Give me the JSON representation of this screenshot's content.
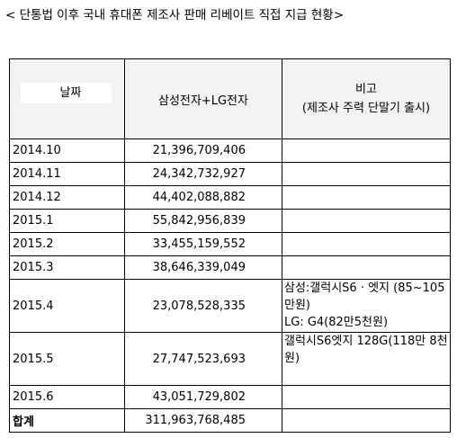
{
  "title": "< 단통법 이후 국내 휴대폰 제조사 판매 리베이트 직접 지급 현황>",
  "headers": {
    "date": "날짜",
    "amount": "삼성전자+LG전자",
    "note_title": "비고",
    "note_sub": "(제조사 주력 단말기 출시)"
  },
  "rows": [
    {
      "date": "2014.10",
      "amount": "21,396,709,406",
      "note": ""
    },
    {
      "date": "2014.11",
      "amount": "24,342,732,927",
      "note": ""
    },
    {
      "date": "2014.12",
      "amount": "44,402,088,882",
      "note": ""
    },
    {
      "date": "2015.1",
      "amount": "55,842,956,839",
      "note": ""
    },
    {
      "date": "2015.2",
      "amount": "33,455,159,552",
      "note": ""
    },
    {
      "date": "2015.3",
      "amount": "38,646,339,049",
      "note": ""
    },
    {
      "date": "2015.4",
      "amount": "23,078,528,335",
      "note": "삼성:갤럭시S6 · 엣지 (85~105만원)",
      "note2": "LG: G4(82만5천원)"
    },
    {
      "date": "2015.5",
      "amount": "27,747,523,693",
      "note": "갤럭시S6엣지 128G(118만 8천원)"
    },
    {
      "date": "2015.6",
      "amount": "43,051,729,802",
      "note": ""
    }
  ],
  "total": {
    "label": "합계",
    "amount": "311,963,768,485"
  }
}
